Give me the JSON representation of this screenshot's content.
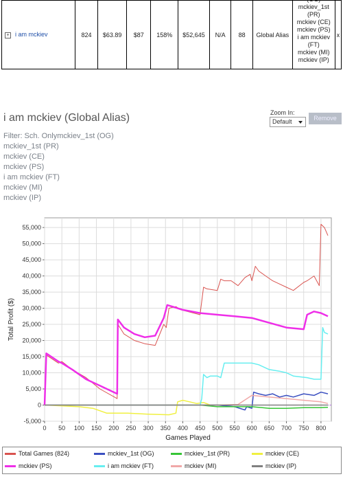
{
  "table_row": {
    "expander": "+",
    "name": "i am mckiev",
    "games": "824",
    "per_game": "$63.89",
    "median": "$87",
    "roi": "158%",
    "total": "$52,645",
    "na": "N/A",
    "count": "88",
    "type": "Global Alias",
    "aliases": [
      "(OG)",
      "mckiev_1st",
      "(PR)",
      "mckiev (CE)",
      "mckiev (PS)",
      "i am mckiev",
      "(FT)",
      "mckiev (MI)",
      "mckiev (IP)"
    ],
    "remove_x": "x"
  },
  "header": {
    "title": "i am mckiev (Global Alias)",
    "zoom_label": "Zoom In:",
    "zoom_value": "Default",
    "remove_label": "Remove"
  },
  "filters": [
    "Filter: Sch. Onlymckiev_1st (OG)",
    "mckiev_1st (PR)",
    "mckiev (CE)",
    "mckiev (PS)",
    "i am mckiev (FT)",
    "mckiev (MI)",
    "mckiev (IP)"
  ],
  "chart_data": {
    "type": "line",
    "xlabel": "Games Played",
    "ylabel": "Total Profit ($)",
    "xlim": [
      0,
      830
    ],
    "ylim": [
      -5000,
      58000
    ],
    "xticks": [
      0,
      50,
      100,
      150,
      200,
      250,
      300,
      350,
      400,
      450,
      500,
      550,
      600,
      650,
      700,
      750,
      800
    ],
    "yticks": [
      -5000,
      0,
      5000,
      10000,
      15000,
      20000,
      25000,
      30000,
      35000,
      40000,
      45000,
      50000,
      55000
    ],
    "ytick_labels": [
      "-5,000",
      "0",
      "5,000",
      "10,000",
      "15,000",
      "20,000",
      "25,000",
      "30,000",
      "35,000",
      "40,000",
      "45,000",
      "50,000",
      "55,000"
    ],
    "grid": true,
    "legend_position": "bottom",
    "series": [
      {
        "name": "Total Games (824)",
        "color": "#d9534f",
        "width": 1,
        "x": [
          0,
          5,
          40,
          50,
          80,
          120,
          160,
          210,
          212,
          230,
          260,
          290,
          320,
          345,
          352,
          360,
          380,
          395,
          450,
          460,
          470,
          500,
          510,
          520,
          540,
          560,
          580,
          595,
          600,
          610,
          620,
          640,
          660,
          680,
          700,
          720,
          750,
          760,
          780,
          795,
          800,
          810,
          820
        ],
        "y": [
          0,
          15500,
          13000,
          13500,
          11000,
          8500,
          5000,
          2000,
          25000,
          22000,
          20000,
          19000,
          18500,
          25000,
          24000,
          30000,
          30500,
          29500,
          28000,
          36500,
          36000,
          35500,
          39000,
          38500,
          38500,
          37000,
          39500,
          40500,
          38500,
          43000,
          41500,
          40000,
          38500,
          37500,
          36500,
          35500,
          38000,
          38500,
          40000,
          37000,
          56000,
          55000,
          52500
        ]
      },
      {
        "name": "mckiev_1st (OG)",
        "color": "#3a4fc0",
        "width": 1.5,
        "x": [
          0,
          100,
          200,
          300,
          400,
          500,
          550,
          580,
          585,
          600,
          605,
          620,
          640,
          660,
          680,
          700,
          720,
          750,
          780,
          800,
          820
        ],
        "y": [
          0,
          0,
          0,
          0,
          0,
          0,
          -500,
          -1500,
          -500,
          -1000,
          4000,
          3500,
          3000,
          3500,
          2500,
          3000,
          2500,
          3500,
          3000,
          4000,
          3500
        ]
      },
      {
        "name": "mckiev_1st (PR)",
        "color": "#35c535",
        "width": 1.5,
        "x": [
          0,
          100,
          200,
          300,
          400,
          450,
          500,
          550,
          600,
          650,
          700,
          750,
          800,
          820
        ],
        "y": [
          0,
          0,
          0,
          0,
          0,
          0,
          -500,
          -500,
          -500,
          -1000,
          -1000,
          -800,
          -800,
          -700
        ]
      },
      {
        "name": "mckiev (CE)",
        "color": "#f0f040",
        "width": 1.5,
        "x": [
          0,
          100,
          140,
          180,
          240,
          300,
          360,
          380,
          385,
          400,
          420,
          440,
          460,
          480
        ],
        "y": [
          0,
          -500,
          -1000,
          -2500,
          -2500,
          -2800,
          -3000,
          -2500,
          1000,
          1500,
          1000,
          500,
          800,
          0
        ]
      },
      {
        "name": "mckiev (PS)",
        "color": "#ee2ee8",
        "width": 2.5,
        "x": [
          0,
          5,
          40,
          50,
          80,
          120,
          160,
          210,
          212,
          230,
          260,
          290,
          320,
          345,
          355,
          370,
          400,
          450,
          500,
          550,
          600,
          650,
          700,
          750,
          760,
          780,
          800,
          820
        ],
        "y": [
          0,
          16000,
          13500,
          13000,
          11000,
          8000,
          6000,
          3500,
          26500,
          24000,
          22000,
          21000,
          21500,
          27000,
          31000,
          30500,
          29500,
          28500,
          28000,
          27500,
          27000,
          25500,
          24000,
          23500,
          28000,
          29000,
          28500,
          27500
        ]
      },
      {
        "name": "i am mckiev (FT)",
        "color": "#66eef0",
        "width": 1.5,
        "x": [
          0,
          100,
          200,
          300,
          400,
          450,
          455,
          460,
          470,
          480,
          500,
          510,
          520,
          560,
          600,
          620,
          650,
          680,
          700,
          720,
          760,
          780,
          800,
          805,
          810,
          820
        ],
        "y": [
          0,
          0,
          0,
          0,
          0,
          0,
          2000,
          9500,
          8500,
          9000,
          9000,
          8500,
          13000,
          13000,
          13000,
          12500,
          11000,
          10500,
          10000,
          9000,
          8500,
          8000,
          8000,
          24000,
          22500,
          22000
        ]
      },
      {
        "name": "mckiev (MI)",
        "color": "#f0a8a8",
        "width": 1.5,
        "x": [
          0,
          100,
          200,
          300,
          400,
          500,
          560,
          600,
          620,
          650,
          700,
          750,
          800,
          820
        ],
        "y": [
          0,
          0,
          0,
          0,
          0,
          0,
          200,
          3000,
          2800,
          2500,
          2000,
          1500,
          1000,
          500
        ]
      },
      {
        "name": "mckiev (IP)",
        "color": "#808080",
        "width": 1.5,
        "x": [
          0,
          100,
          200,
          300,
          400,
          500,
          600,
          700,
          800,
          820
        ],
        "y": [
          0,
          0,
          0,
          0,
          0,
          0,
          0,
          0,
          0,
          0
        ]
      }
    ]
  }
}
